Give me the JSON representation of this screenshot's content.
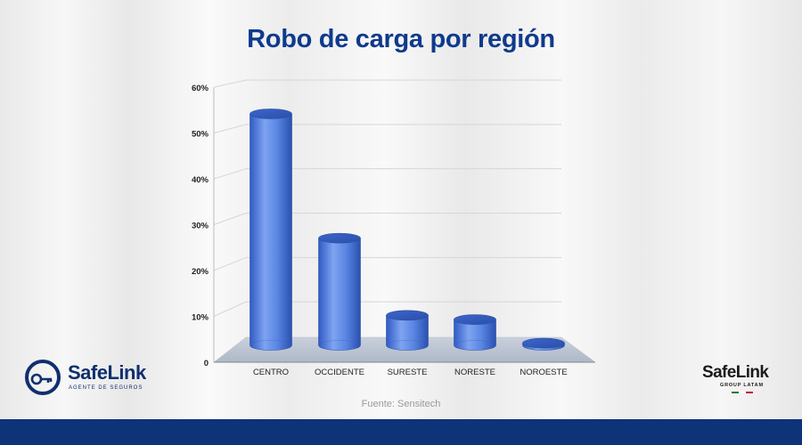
{
  "title": "Robo de carga por región",
  "source": "Fuente: Sensitech",
  "logos": {
    "left": {
      "name": "SafeLink",
      "tagline": "AGENTE DE SEGUROS",
      "color": "#0f2f6e"
    },
    "right": {
      "name": "SafeLink",
      "tagline": "GROUP LATAM",
      "flag_colors": [
        "#0b7a3b",
        "#ffffff",
        "#c8102e"
      ]
    }
  },
  "colors": {
    "title": "#0f3a8c",
    "bar": "#4f7de0",
    "band": "#0d3378"
  },
  "chart_data": {
    "type": "bar",
    "style": "3d-cylinder",
    "title": "Robo de carga por región",
    "xlabel": "",
    "ylabel": "",
    "categories": [
      "CENTRO",
      "OCCIDENTE",
      "SURESTE",
      "NORESTE",
      "NOROESTE"
    ],
    "values": [
      54,
      25,
      7,
      6,
      0.5
    ],
    "yticks": [
      0,
      10,
      20,
      30,
      40,
      50,
      60
    ],
    "ytick_labels": [
      "0",
      "10%",
      "20%",
      "30%",
      "40%",
      "50%",
      "60%"
    ],
    "ylim": [
      0,
      60
    ],
    "grid": true,
    "legend": "none"
  }
}
